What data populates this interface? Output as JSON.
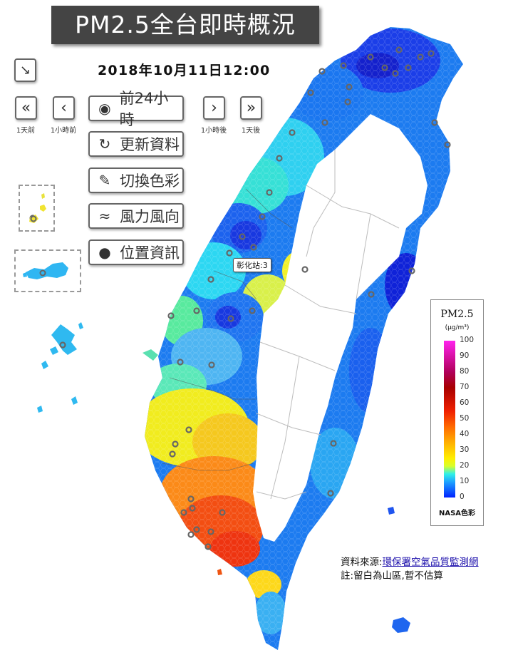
{
  "title": "PM2.5全台即時概況",
  "datetime": "2018年10月11日12:00",
  "nav": {
    "prev_day_caption": "1天前",
    "prev_hour_caption": "1小時前",
    "next_hour_caption": "1小時後",
    "next_day_caption": "1天後"
  },
  "menu": {
    "play_24h": "前24小時",
    "refresh": "更新資料",
    "switch_color": "切換色彩",
    "wind": "風力風向",
    "location": "位置資訊"
  },
  "station_popup": "彰化站:3",
  "legend": {
    "title": "PM2.5",
    "unit": "(μg/m³)",
    "ticks": [
      "100",
      "90",
      "80",
      "70",
      "60",
      "50",
      "40",
      "30",
      "20",
      "10",
      "0"
    ],
    "scheme": "NASA色彩"
  },
  "source": {
    "prefix": "資料來源:",
    "link": "環保署空氣品質監測網",
    "note": "註:留白為山區,暫不估算"
  },
  "colors": {
    "accent_dark": "#444444",
    "blue": "#1e5ef0",
    "cyan": "#35d6ff",
    "yellow": "#f5ee10",
    "orange": "#ff9a10",
    "red": "#f03a10"
  },
  "icons": [
    "collapse-arrow-icon",
    "double-chevron-left-icon",
    "chevron-left-icon",
    "play-icon",
    "refresh-icon",
    "brush-icon",
    "wind-icon",
    "map-pin-icon",
    "chevron-right-icon",
    "double-chevron-right-icon"
  ]
}
